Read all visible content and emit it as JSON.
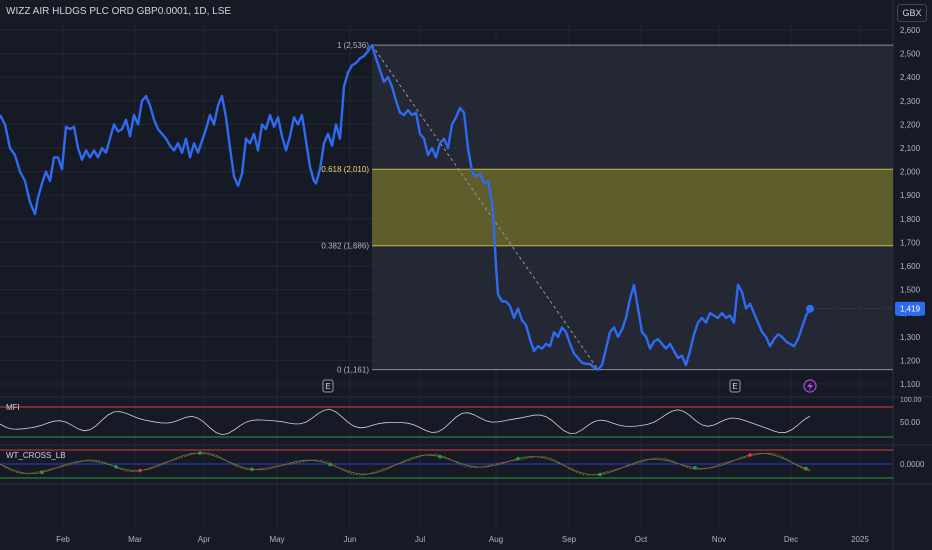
{
  "header": {
    "title": "WIZZ AIR HLDGS PLC ORD GBP0.0001, 1D, LSE",
    "currency": "GBX"
  },
  "colors": {
    "background": "#161a25",
    "grid": "#232733",
    "price_line": "#2f6bf0",
    "fib_band": "#6e6a2a",
    "fib_line": "#c8b84a",
    "fib_box": "#2a2e39",
    "mfi_line": "#d1d4dc",
    "upper_band": "#e03b3b",
    "lower_band": "#2b9a3c",
    "mid_band": "#2a3bd6",
    "event_icon": "#b44be0"
  },
  "chart_data": {
    "type": "line",
    "ylim": [
      1080,
      2650
    ],
    "y_ticks": [
      "2,600",
      "2,500",
      "2,400",
      "2,300",
      "2,200",
      "2,100",
      "2,000",
      "1,900",
      "1,800",
      "1,700",
      "1,600",
      "1,500",
      "1,400",
      "1,300",
      "1,200",
      "1,100"
    ],
    "x_ticks": [
      "Feb",
      "Mar",
      "Apr",
      "May",
      "Jun",
      "Jul",
      "Aug",
      "Sep",
      "Oct",
      "Nov",
      "Dec",
      "2025"
    ],
    "last_price_label": "1,419",
    "series": [
      {
        "values": [
          [
            0,
            2240
          ],
          [
            5,
            2200
          ],
          [
            10,
            2100
          ],
          [
            15,
            2070
          ],
          [
            20,
            2000
          ],
          [
            25,
            1960
          ],
          [
            30,
            1870
          ],
          [
            35,
            1820
          ],
          [
            38,
            1890
          ],
          [
            42,
            1950
          ],
          [
            46,
            2000
          ],
          [
            50,
            1960
          ],
          [
            54,
            2060
          ],
          [
            58,
            2060
          ],
          [
            62,
            2010
          ],
          [
            66,
            2190
          ],
          [
            70,
            2180
          ],
          [
            74,
            2190
          ],
          [
            78,
            2100
          ],
          [
            82,
            2050
          ],
          [
            86,
            2090
          ],
          [
            90,
            2060
          ],
          [
            94,
            2090
          ],
          [
            98,
            2060
          ],
          [
            102,
            2100
          ],
          [
            106,
            2080
          ],
          [
            110,
            2140
          ],
          [
            114,
            2200
          ],
          [
            118,
            2170
          ],
          [
            122,
            2180
          ],
          [
            126,
            2220
          ],
          [
            130,
            2150
          ],
          [
            134,
            2240
          ],
          [
            138,
            2200
          ],
          [
            142,
            2300
          ],
          [
            146,
            2320
          ],
          [
            150,
            2280
          ],
          [
            154,
            2220
          ],
          [
            158,
            2180
          ],
          [
            162,
            2160
          ],
          [
            166,
            2140
          ],
          [
            170,
            2110
          ],
          [
            174,
            2090
          ],
          [
            178,
            2120
          ],
          [
            182,
            2080
          ],
          [
            186,
            2140
          ],
          [
            190,
            2060
          ],
          [
            194,
            2120
          ],
          [
            198,
            2080
          ],
          [
            202,
            2130
          ],
          [
            206,
            2180
          ],
          [
            210,
            2240
          ],
          [
            214,
            2200
          ],
          [
            218,
            2280
          ],
          [
            222,
            2320
          ],
          [
            226,
            2230
          ],
          [
            230,
            2100
          ],
          [
            234,
            1980
          ],
          [
            238,
            1940
          ],
          [
            242,
            1990
          ],
          [
            246,
            2140
          ],
          [
            250,
            2120
          ],
          [
            254,
            2160
          ],
          [
            258,
            2090
          ],
          [
            262,
            2200
          ],
          [
            266,
            2180
          ],
          [
            270,
            2240
          ],
          [
            274,
            2190
          ],
          [
            278,
            2230
          ],
          [
            282,
            2150
          ],
          [
            286,
            2090
          ],
          [
            290,
            2150
          ],
          [
            294,
            2230
          ],
          [
            298,
            2200
          ],
          [
            302,
            2240
          ],
          [
            306,
            2130
          ],
          [
            310,
            2020
          ],
          [
            314,
            1960
          ],
          [
            316,
            1950
          ],
          [
            320,
            2010
          ],
          [
            324,
            2120
          ],
          [
            328,
            2160
          ],
          [
            332,
            2110
          ],
          [
            336,
            2200
          ],
          [
            340,
            2140
          ],
          [
            344,
            2360
          ],
          [
            348,
            2420
          ],
          [
            352,
            2450
          ],
          [
            356,
            2460
          ],
          [
            360,
            2480
          ],
          [
            364,
            2490
          ],
          [
            368,
            2510
          ],
          [
            372,
            2536
          ],
          [
            376,
            2480
          ],
          [
            380,
            2430
          ],
          [
            384,
            2380
          ],
          [
            388,
            2400
          ],
          [
            392,
            2360
          ],
          [
            396,
            2300
          ],
          [
            400,
            2250
          ],
          [
            404,
            2240
          ],
          [
            408,
            2260
          ],
          [
            412,
            2240
          ],
          [
            416,
            2250
          ],
          [
            420,
            2160
          ],
          [
            424,
            2140
          ],
          [
            428,
            2070
          ],
          [
            432,
            2100
          ],
          [
            436,
            2060
          ],
          [
            440,
            2120
          ],
          [
            444,
            2140
          ],
          [
            448,
            2100
          ],
          [
            452,
            2200
          ],
          [
            456,
            2230
          ],
          [
            460,
            2270
          ],
          [
            464,
            2250
          ],
          [
            468,
            2100
          ],
          [
            472,
            2000
          ],
          [
            476,
            1980
          ],
          [
            480,
            1990
          ],
          [
            484,
            1950
          ],
          [
            488,
            1960
          ],
          [
            492,
            1870
          ],
          [
            494,
            1760
          ],
          [
            496,
            1600
          ],
          [
            498,
            1480
          ],
          [
            502,
            1450
          ],
          [
            506,
            1450
          ],
          [
            510,
            1430
          ],
          [
            514,
            1380
          ],
          [
            518,
            1420
          ],
          [
            522,
            1370
          ],
          [
            526,
            1350
          ],
          [
            530,
            1290
          ],
          [
            534,
            1240
          ],
          [
            538,
            1260
          ],
          [
            542,
            1250
          ],
          [
            546,
            1270
          ],
          [
            550,
            1260
          ],
          [
            554,
            1320
          ],
          [
            558,
            1300
          ],
          [
            562,
            1340
          ],
          [
            566,
            1320
          ],
          [
            570,
            1270
          ],
          [
            574,
            1230
          ],
          [
            578,
            1210
          ],
          [
            582,
            1190
          ],
          [
            586,
            1185
          ],
          [
            590,
            1185
          ],
          [
            594,
            1170
          ],
          [
            598,
            1161
          ],
          [
            602,
            1180
          ],
          [
            606,
            1250
          ],
          [
            610,
            1320
          ],
          [
            614,
            1340
          ],
          [
            618,
            1300
          ],
          [
            622,
            1330
          ],
          [
            626,
            1380
          ],
          [
            630,
            1460
          ],
          [
            634,
            1520
          ],
          [
            638,
            1420
          ],
          [
            642,
            1320
          ],
          [
            646,
            1300
          ],
          [
            650,
            1250
          ],
          [
            654,
            1280
          ],
          [
            658,
            1290
          ],
          [
            662,
            1270
          ],
          [
            666,
            1250
          ],
          [
            670,
            1270
          ],
          [
            674,
            1240
          ],
          [
            678,
            1210
          ],
          [
            682,
            1220
          ],
          [
            686,
            1180
          ],
          [
            690,
            1240
          ],
          [
            694,
            1310
          ],
          [
            698,
            1360
          ],
          [
            702,
            1380
          ],
          [
            706,
            1360
          ],
          [
            710,
            1400
          ],
          [
            714,
            1390
          ],
          [
            718,
            1380
          ],
          [
            722,
            1400
          ],
          [
            726,
            1380
          ],
          [
            730,
            1390
          ],
          [
            734,
            1360
          ],
          [
            738,
            1520
          ],
          [
            742,
            1490
          ],
          [
            746,
            1420
          ],
          [
            750,
            1440
          ],
          [
            754,
            1400
          ],
          [
            758,
            1360
          ],
          [
            762,
            1320
          ],
          [
            766,
            1300
          ],
          [
            770,
            1260
          ],
          [
            774,
            1290
          ],
          [
            778,
            1310
          ],
          [
            782,
            1300
          ],
          [
            786,
            1280
          ],
          [
            790,
            1270
          ],
          [
            794,
            1260
          ],
          [
            798,
            1290
          ],
          [
            802,
            1340
          ],
          [
            806,
            1390
          ],
          [
            810,
            1419
          ]
        ]
      }
    ],
    "fibonacci": [
      {
        "label": "1 (2,536)",
        "value": 2536
      },
      {
        "label": "0.618 (2,010)",
        "value": 2010
      },
      {
        "label": "0.382 (1,686)",
        "value": 1686
      },
      {
        "label": "0 (1,161)",
        "value": 1161
      }
    ]
  },
  "indicators": {
    "mfi": {
      "label": "MFI",
      "tick_label": "50.00",
      "upper_tick_label": "100.00"
    },
    "wt": {
      "label": "WT_CROSS_LB",
      "tick_label": "0.0000"
    }
  },
  "events": [
    "E",
    "E"
  ]
}
